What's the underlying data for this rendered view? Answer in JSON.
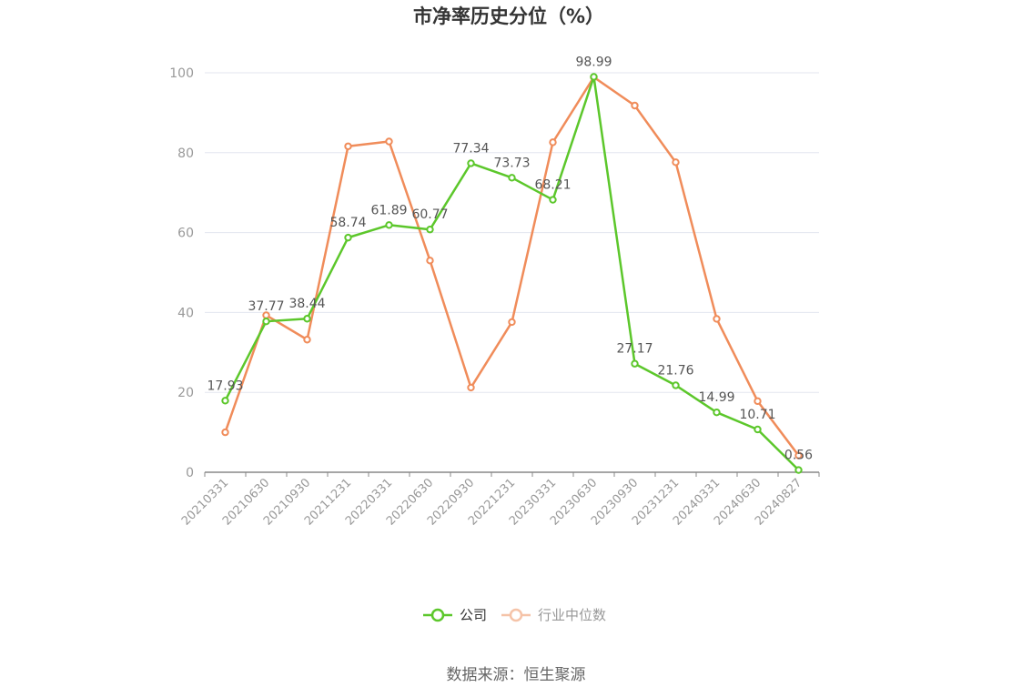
{
  "chart_data": {
    "type": "line",
    "title": "市净率历史分位（%）",
    "categories": [
      "20210331",
      "20210630",
      "20210930",
      "20211231",
      "20220331",
      "20220630",
      "20220930",
      "20221231",
      "20230331",
      "20230630",
      "20230930",
      "20231231",
      "20240331",
      "20240630",
      "20240827"
    ],
    "ylim": [
      0,
      100
    ],
    "yticks": [
      0,
      20,
      40,
      60,
      80,
      100
    ],
    "grid": true,
    "legend_position": "bottom",
    "series": [
      {
        "name": "公司",
        "color": "#5cc72b",
        "values": [
          17.93,
          37.77,
          38.44,
          58.74,
          61.89,
          60.77,
          77.34,
          73.73,
          68.21,
          98.99,
          27.17,
          21.76,
          14.99,
          10.71,
          0.56
        ],
        "labels": [
          "17.93",
          "37.77",
          "38.44",
          "58.74",
          "61.89",
          "60.77",
          "77.34",
          "73.73",
          "68.21",
          "98.99",
          "27.17",
          "21.76",
          "14.99",
          "10.71",
          "0.56"
        ]
      },
      {
        "name": "行业中位数",
        "color": "#f08c5a",
        "values": [
          10.0,
          39.3,
          33.2,
          81.6,
          82.8,
          53.0,
          21.2,
          37.6,
          82.6,
          98.9,
          91.8,
          77.6,
          38.4,
          17.8,
          4.2
        ]
      }
    ],
    "source": "数据来源：恒生聚源"
  }
}
